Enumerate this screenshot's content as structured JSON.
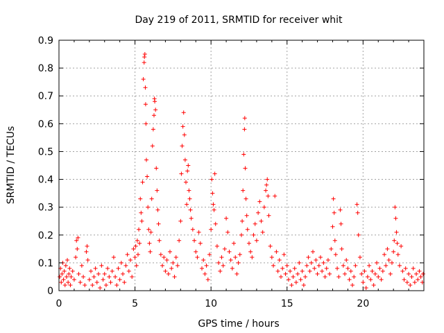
{
  "chart_data": {
    "type": "scatter",
    "title": "Day 219 of 2011, SRMTID for receiver whit",
    "xlabel": "GPS time / hours",
    "ylabel": "SRMTID / TECUs",
    "xlim": [
      0,
      24
    ],
    "ylim": [
      0,
      0.9
    ],
    "xticks": [
      0,
      5,
      10,
      15,
      20
    ],
    "yticks": [
      0,
      0.1,
      0.2,
      0.3,
      0.4,
      0.5,
      0.6,
      0.7,
      0.8,
      0.9
    ],
    "grid": true,
    "marker": "+",
    "series_color": "#ff0000",
    "points_note": "Dense point cloud; x in hours, y in TECU. Representative sample below.",
    "points": [
      [
        0.05,
        0.05
      ],
      [
        0.1,
        0.08
      ],
      [
        0.15,
        0.03
      ],
      [
        0.2,
        0.06
      ],
      [
        0.25,
        0.1
      ],
      [
        0.3,
        0.04
      ],
      [
        0.35,
        0.07
      ],
      [
        0.4,
        0.02
      ],
      [
        0.45,
        0.09
      ],
      [
        0.5,
        0.05
      ],
      [
        0.55,
        0.11
      ],
      [
        0.6,
        0.03
      ],
      [
        0.65,
        0.06
      ],
      [
        0.7,
        0.08
      ],
      [
        0.75,
        0.02
      ],
      [
        0.8,
        0.05
      ],
      [
        0.9,
        0.07
      ],
      [
        1.0,
        0.04
      ],
      [
        1.1,
        0.12
      ],
      [
        1.15,
        0.18
      ],
      [
        1.2,
        0.15
      ],
      [
        1.25,
        0.19
      ],
      [
        1.3,
        0.06
      ],
      [
        1.4,
        0.03
      ],
      [
        1.5,
        0.09
      ],
      [
        1.6,
        0.05
      ],
      [
        1.7,
        0.02
      ],
      [
        1.8,
        0.14
      ],
      [
        1.85,
        0.16
      ],
      [
        1.9,
        0.11
      ],
      [
        2.0,
        0.04
      ],
      [
        2.1,
        0.07
      ],
      [
        2.2,
        0.02
      ],
      [
        2.3,
        0.05
      ],
      [
        2.4,
        0.08
      ],
      [
        2.5,
        0.03
      ],
      [
        2.6,
        0.06
      ],
      [
        2.7,
        0.01
      ],
      [
        2.8,
        0.09
      ],
      [
        2.9,
        0.04
      ],
      [
        3.0,
        0.06
      ],
      [
        3.1,
        0.02
      ],
      [
        3.2,
        0.08
      ],
      [
        3.3,
        0.05
      ],
      [
        3.4,
        0.03
      ],
      [
        3.5,
        0.07
      ],
      [
        3.6,
        0.12
      ],
      [
        3.7,
        0.05
      ],
      [
        3.8,
        0.02
      ],
      [
        3.9,
        0.08
      ],
      [
        4.0,
        0.04
      ],
      [
        4.1,
        0.1
      ],
      [
        4.2,
        0.06
      ],
      [
        4.3,
        0.03
      ],
      [
        4.4,
        0.09
      ],
      [
        4.5,
        0.13
      ],
      [
        4.6,
        0.07
      ],
      [
        4.7,
        0.11
      ],
      [
        4.8,
        0.05
      ],
      [
        4.9,
        0.15
      ],
      [
        5.0,
        0.12
      ],
      [
        5.05,
        0.16
      ],
      [
        5.1,
        0.09
      ],
      [
        5.15,
        0.18
      ],
      [
        5.2,
        0.13
      ],
      [
        5.25,
        0.22
      ],
      [
        5.3,
        0.17
      ],
      [
        5.35,
        0.33
      ],
      [
        5.4,
        0.28
      ],
      [
        5.45,
        0.25
      ],
      [
        5.5,
        0.39
      ],
      [
        5.55,
        0.76
      ],
      [
        5.6,
        0.82
      ],
      [
        5.62,
        0.84
      ],
      [
        5.65,
        0.85
      ],
      [
        5.68,
        0.73
      ],
      [
        5.7,
        0.67
      ],
      [
        5.72,
        0.6
      ],
      [
        5.75,
        0.47
      ],
      [
        5.8,
        0.41
      ],
      [
        5.85,
        0.3
      ],
      [
        5.9,
        0.22
      ],
      [
        5.95,
        0.17
      ],
      [
        6.0,
        0.14
      ],
      [
        6.05,
        0.21
      ],
      [
        6.1,
        0.33
      ],
      [
        6.15,
        0.52
      ],
      [
        6.2,
        0.58
      ],
      [
        6.25,
        0.63
      ],
      [
        6.28,
        0.69
      ],
      [
        6.3,
        0.68
      ],
      [
        6.35,
        0.65
      ],
      [
        6.4,
        0.44
      ],
      [
        6.45,
        0.36
      ],
      [
        6.5,
        0.29
      ],
      [
        6.55,
        0.24
      ],
      [
        6.6,
        0.18
      ],
      [
        6.7,
        0.13
      ],
      [
        6.8,
        0.09
      ],
      [
        6.9,
        0.12
      ],
      [
        7.0,
        0.07
      ],
      [
        7.1,
        0.11
      ],
      [
        7.2,
        0.06
      ],
      [
        7.3,
        0.14
      ],
      [
        7.4,
        0.08
      ],
      [
        7.5,
        0.1
      ],
      [
        7.6,
        0.05
      ],
      [
        7.7,
        0.12
      ],
      [
        7.8,
        0.09
      ],
      [
        7.9,
        0.18
      ],
      [
        8.0,
        0.25
      ],
      [
        8.05,
        0.42
      ],
      [
        8.1,
        0.52
      ],
      [
        8.15,
        0.59
      ],
      [
        8.2,
        0.64
      ],
      [
        8.25,
        0.56
      ],
      [
        8.3,
        0.47
      ],
      [
        8.35,
        0.39
      ],
      [
        8.4,
        0.31
      ],
      [
        8.45,
        0.43
      ],
      [
        8.5,
        0.45
      ],
      [
        8.55,
        0.36
      ],
      [
        8.6,
        0.33
      ],
      [
        8.65,
        0.29
      ],
      [
        8.7,
        0.26
      ],
      [
        8.8,
        0.22
      ],
      [
        8.9,
        0.18
      ],
      [
        9.0,
        0.14
      ],
      [
        9.1,
        0.12
      ],
      [
        9.2,
        0.21
      ],
      [
        9.3,
        0.17
      ],
      [
        9.4,
        0.08
      ],
      [
        9.5,
        0.11
      ],
      [
        9.6,
        0.06
      ],
      [
        9.7,
        0.09
      ],
      [
        9.8,
        0.04
      ],
      [
        9.9,
        0.13
      ],
      [
        10.0,
        0.22
      ],
      [
        10.05,
        0.4
      ],
      [
        10.1,
        0.35
      ],
      [
        10.15,
        0.31
      ],
      [
        10.2,
        0.29
      ],
      [
        10.25,
        0.42
      ],
      [
        10.3,
        0.24
      ],
      [
        10.4,
        0.16
      ],
      [
        10.5,
        0.1
      ],
      [
        10.6,
        0.07
      ],
      [
        10.7,
        0.12
      ],
      [
        10.8,
        0.09
      ],
      [
        10.9,
        0.15
      ],
      [
        11.0,
        0.26
      ],
      [
        11.1,
        0.21
      ],
      [
        11.2,
        0.14
      ],
      [
        11.3,
        0.11
      ],
      [
        11.4,
        0.08
      ],
      [
        11.5,
        0.17
      ],
      [
        11.6,
        0.12
      ],
      [
        11.7,
        0.06
      ],
      [
        11.8,
        0.1
      ],
      [
        11.9,
        0.13
      ],
      [
        12.0,
        0.2
      ],
      [
        12.05,
        0.25
      ],
      [
        12.1,
        0.36
      ],
      [
        12.15,
        0.49
      ],
      [
        12.2,
        0.58
      ],
      [
        12.22,
        0.62
      ],
      [
        12.25,
        0.44
      ],
      [
        12.3,
        0.33
      ],
      [
        12.35,
        0.27
      ],
      [
        12.4,
        0.22
      ],
      [
        12.5,
        0.17
      ],
      [
        12.6,
        0.14
      ],
      [
        12.7,
        0.12
      ],
      [
        12.8,
        0.2
      ],
      [
        12.9,
        0.24
      ],
      [
        13.0,
        0.18
      ],
      [
        13.1,
        0.28
      ],
      [
        13.2,
        0.32
      ],
      [
        13.3,
        0.25
      ],
      [
        13.4,
        0.21
      ],
      [
        13.5,
        0.3
      ],
      [
        13.6,
        0.36
      ],
      [
        13.65,
        0.38
      ],
      [
        13.7,
        0.4
      ],
      [
        13.75,
        0.34
      ],
      [
        13.8,
        0.27
      ],
      [
        13.9,
        0.16
      ],
      [
        14.0,
        0.12
      ],
      [
        14.1,
        0.09
      ],
      [
        14.2,
        0.34
      ],
      [
        14.3,
        0.14
      ],
      [
        14.4,
        0.07
      ],
      [
        14.5,
        0.11
      ],
      [
        14.6,
        0.05
      ],
      [
        14.7,
        0.08
      ],
      [
        14.8,
        0.13
      ],
      [
        14.9,
        0.06
      ],
      [
        15.0,
        0.09
      ],
      [
        15.1,
        0.04
      ],
      [
        15.2,
        0.07
      ],
      [
        15.3,
        0.02
      ],
      [
        15.4,
        0.05
      ],
      [
        15.5,
        0.08
      ],
      [
        15.6,
        0.03
      ],
      [
        15.7,
        0.06
      ],
      [
        15.8,
        0.1
      ],
      [
        15.9,
        0.04
      ],
      [
        16.0,
        0.07
      ],
      [
        16.1,
        0.02
      ],
      [
        16.2,
        0.05
      ],
      [
        16.3,
        0.09
      ],
      [
        16.4,
        0.12
      ],
      [
        16.5,
        0.07
      ],
      [
        16.6,
        0.1
      ],
      [
        16.7,
        0.14
      ],
      [
        16.8,
        0.08
      ],
      [
        16.9,
        0.11
      ],
      [
        17.0,
        0.06
      ],
      [
        17.1,
        0.09
      ],
      [
        17.2,
        0.12
      ],
      [
        17.3,
        0.07
      ],
      [
        17.4,
        0.1
      ],
      [
        17.5,
        0.05
      ],
      [
        17.6,
        0.08
      ],
      [
        17.7,
        0.11
      ],
      [
        17.8,
        0.06
      ],
      [
        17.9,
        0.15
      ],
      [
        18.0,
        0.23
      ],
      [
        18.05,
        0.33
      ],
      [
        18.1,
        0.28
      ],
      [
        18.15,
        0.18
      ],
      [
        18.2,
        0.13
      ],
      [
        18.3,
        0.08
      ],
      [
        18.4,
        0.05
      ],
      [
        18.5,
        0.29
      ],
      [
        18.55,
        0.24
      ],
      [
        18.6,
        0.15
      ],
      [
        18.7,
        0.09
      ],
      [
        18.8,
        0.06
      ],
      [
        18.9,
        0.11
      ],
      [
        19.0,
        0.08
      ],
      [
        19.1,
        0.04
      ],
      [
        19.2,
        0.07
      ],
      [
        19.3,
        0.02
      ],
      [
        19.4,
        0.05
      ],
      [
        19.5,
        0.09
      ],
      [
        19.6,
        0.31
      ],
      [
        19.65,
        0.28
      ],
      [
        19.7,
        0.2
      ],
      [
        19.8,
        0.12
      ],
      [
        19.9,
        0.06
      ],
      [
        20.0,
        0.03
      ],
      [
        20.1,
        0.07
      ],
      [
        20.2,
        0.01
      ],
      [
        20.3,
        0.05
      ],
      [
        20.4,
        0.09
      ],
      [
        20.5,
        0.04
      ],
      [
        20.6,
        0.07
      ],
      [
        20.7,
        0.02
      ],
      [
        20.8,
        0.06
      ],
      [
        20.9,
        0.1
      ],
      [
        21.0,
        0.05
      ],
      [
        21.1,
        0.08
      ],
      [
        21.2,
        0.04
      ],
      [
        21.3,
        0.07
      ],
      [
        21.4,
        0.13
      ],
      [
        21.5,
        0.09
      ],
      [
        21.6,
        0.15
      ],
      [
        21.7,
        0.11
      ],
      [
        21.8,
        0.06
      ],
      [
        21.9,
        0.1
      ],
      [
        22.0,
        0.14
      ],
      [
        22.05,
        0.18
      ],
      [
        22.1,
        0.3
      ],
      [
        22.15,
        0.26
      ],
      [
        22.2,
        0.21
      ],
      [
        22.25,
        0.17
      ],
      [
        22.3,
        0.13
      ],
      [
        22.4,
        0.09
      ],
      [
        22.5,
        0.16
      ],
      [
        22.6,
        0.07
      ],
      [
        22.7,
        0.04
      ],
      [
        22.8,
        0.08
      ],
      [
        22.9,
        0.03
      ],
      [
        23.0,
        0.06
      ],
      [
        23.1,
        0.02
      ],
      [
        23.2,
        0.05
      ],
      [
        23.3,
        0.08
      ],
      [
        23.4,
        0.03
      ],
      [
        23.5,
        0.06
      ],
      [
        23.6,
        0.04
      ],
      [
        23.7,
        0.07
      ],
      [
        23.8,
        0.05
      ],
      [
        23.9,
        0.03
      ],
      [
        23.95,
        0.06
      ]
    ]
  }
}
